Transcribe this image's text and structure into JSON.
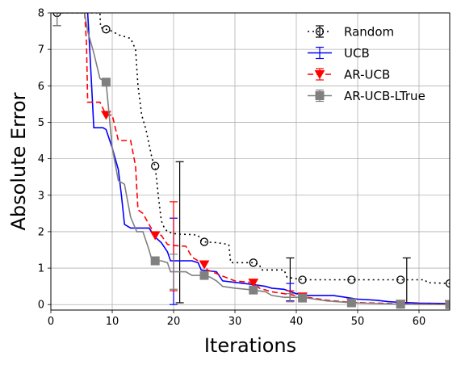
{
  "chart_data": {
    "type": "line",
    "xlabel": "Iterations",
    "ylabel": "Absolute Error",
    "xlim": [
      0,
      65
    ],
    "ylim": [
      -0.15,
      8
    ],
    "x_ticks": [
      0,
      10,
      20,
      30,
      40,
      50,
      60
    ],
    "y_ticks": [
      0,
      1,
      2,
      3,
      4,
      5,
      6,
      7,
      8
    ],
    "grid": true,
    "legend_position": "top-right",
    "series": [
      {
        "name": "Random",
        "color": "#000000",
        "line_style": "dotted",
        "marker": "open-circle",
        "points": [
          [
            1,
            8
          ],
          [
            6,
            8
          ],
          [
            7,
            8
          ],
          [
            8,
            8
          ],
          [
            8.1,
            7.6
          ],
          [
            9,
            7.55
          ],
          [
            10,
            7.5
          ],
          [
            11,
            7.4
          ],
          [
            12,
            7.35
          ],
          [
            13,
            7.3
          ],
          [
            13.8,
            7.0
          ],
          [
            14.2,
            6.0
          ],
          [
            14.8,
            5.2
          ],
          [
            15.5,
            4.8
          ],
          [
            16,
            4.4
          ],
          [
            16.5,
            4.0
          ],
          [
            17,
            3.8
          ],
          [
            17.5,
            3.0
          ],
          [
            18,
            2.3
          ],
          [
            18.5,
            2.1
          ],
          [
            19,
            2.0
          ],
          [
            20,
            1.95
          ],
          [
            21,
            1.93
          ],
          [
            23,
            1.92
          ],
          [
            24,
            1.9
          ],
          [
            24.5,
            1.75
          ],
          [
            25,
            1.72
          ],
          [
            27,
            1.7
          ],
          [
            29,
            1.65
          ],
          [
            29.3,
            1.15
          ],
          [
            33,
            1.15
          ],
          [
            34,
            1.1
          ],
          [
            34.3,
            0.95
          ],
          [
            38,
            0.95
          ],
          [
            38.5,
            0.75
          ],
          [
            41,
            0.68
          ],
          [
            49,
            0.68
          ],
          [
            57,
            0.68
          ],
          [
            61,
            0.68
          ],
          [
            61.3,
            0.6
          ],
          [
            65,
            0.58
          ]
        ],
        "markers": [
          [
            1,
            8
          ],
          [
            9,
            7.55
          ],
          [
            17,
            3.8
          ],
          [
            25,
            1.72
          ],
          [
            33,
            1.15
          ],
          [
            41,
            0.68
          ],
          [
            49,
            0.68
          ],
          [
            57,
            0.68
          ],
          [
            65,
            0.58
          ]
        ],
        "error_bars": [
          {
            "x": 1,
            "low": 7.65,
            "high": 8
          },
          {
            "x": 21,
            "low": 0.05,
            "high": 3.92
          },
          {
            "x": 39,
            "low": 0.1,
            "high": 1.28
          },
          {
            "x": 58,
            "low": 0.05,
            "high": 1.28
          }
        ]
      },
      {
        "name": "UCB",
        "color": "#0000ff",
        "line_style": "solid",
        "marker": "none",
        "points": [
          [
            6,
            8
          ],
          [
            6.3,
            7.1
          ],
          [
            7,
            4.85
          ],
          [
            8.5,
            4.85
          ],
          [
            9,
            4.8
          ],
          [
            10,
            4.3
          ],
          [
            11,
            3.7
          ],
          [
            11.5,
            3.0
          ],
          [
            12,
            2.2
          ],
          [
            13,
            2.1
          ],
          [
            16,
            2.1
          ],
          [
            17,
            1.85
          ],
          [
            18,
            1.7
          ],
          [
            19,
            1.45
          ],
          [
            19.5,
            1.2
          ],
          [
            23,
            1.2
          ],
          [
            24,
            1.15
          ],
          [
            24.5,
            0.95
          ],
          [
            27,
            0.9
          ],
          [
            28,
            0.65
          ],
          [
            33,
            0.55
          ],
          [
            35,
            0.5
          ],
          [
            36,
            0.45
          ],
          [
            38,
            0.42
          ],
          [
            40,
            0.3
          ],
          [
            42,
            0.25
          ],
          [
            46,
            0.25
          ],
          [
            48,
            0.2
          ],
          [
            50,
            0.15
          ],
          [
            53,
            0.12
          ],
          [
            55,
            0.08
          ],
          [
            57,
            0.06
          ],
          [
            60,
            0.04
          ],
          [
            65,
            0.03
          ]
        ],
        "markers": [],
        "error_bars": [
          {
            "x": 20,
            "low": 0.0,
            "high": 2.37
          },
          {
            "x": 39,
            "low": 0.1,
            "high": 0.58
          }
        ]
      },
      {
        "name": "AR-UCB",
        "color": "#ff0000",
        "line_style": "dashed",
        "marker": "filled-triangle-down",
        "points": [
          [
            5.5,
            8
          ],
          [
            5.8,
            7.2
          ],
          [
            6,
            5.55
          ],
          [
            8,
            5.55
          ],
          [
            9,
            5.2
          ],
          [
            10,
            5.2
          ],
          [
            11,
            4.5
          ],
          [
            13,
            4.5
          ],
          [
            13.8,
            3.8
          ],
          [
            14.2,
            2.6
          ],
          [
            15,
            2.5
          ],
          [
            16,
            2.2
          ],
          [
            17,
            1.9
          ],
          [
            18,
            1.9
          ],
          [
            19,
            1.65
          ],
          [
            20,
            1.62
          ],
          [
            22,
            1.6
          ],
          [
            23,
            1.3
          ],
          [
            24,
            1.2
          ],
          [
            25,
            1.1
          ],
          [
            25.5,
            0.95
          ],
          [
            27,
            0.85
          ],
          [
            28,
            0.78
          ],
          [
            30,
            0.65
          ],
          [
            33,
            0.6
          ],
          [
            34,
            0.45
          ],
          [
            36,
            0.35
          ],
          [
            38,
            0.3
          ],
          [
            41,
            0.22
          ],
          [
            45,
            0.12
          ],
          [
            49,
            0.06
          ],
          [
            57,
            0.02
          ],
          [
            65,
            0.01
          ]
        ],
        "markers": [
          [
            9,
            5.2
          ],
          [
            17,
            1.9
          ],
          [
            25,
            1.1
          ],
          [
            33,
            0.6
          ],
          [
            41,
            0.22
          ],
          [
            49,
            0.06
          ],
          [
            57,
            0.02
          ],
          [
            65,
            0.01
          ]
        ],
        "error_bars": [
          {
            "x": 20,
            "low": 0.38,
            "high": 2.82
          },
          {
            "x": 39,
            "low": 0.08,
            "high": 0.38
          }
        ]
      },
      {
        "name": "AR-UCB-LTrue",
        "color": "#808080",
        "line_style": "solid",
        "marker": "filled-square",
        "points": [
          [
            1,
            8
          ],
          [
            5.5,
            8
          ],
          [
            6,
            7.5
          ],
          [
            7,
            6.9
          ],
          [
            8,
            6.2
          ],
          [
            9,
            6.1
          ],
          [
            10,
            4.3
          ],
          [
            11,
            3.4
          ],
          [
            12,
            3.3
          ],
          [
            13,
            2.4
          ],
          [
            14,
            2.0
          ],
          [
            15,
            2.0
          ],
          [
            16,
            1.5
          ],
          [
            16.5,
            1.2
          ],
          [
            18,
            1.2
          ],
          [
            19,
            1.15
          ],
          [
            19.5,
            0.9
          ],
          [
            22,
            0.9
          ],
          [
            23,
            0.8
          ],
          [
            25,
            0.8
          ],
          [
            26,
            0.75
          ],
          [
            27,
            0.65
          ],
          [
            28,
            0.5
          ],
          [
            30,
            0.45
          ],
          [
            33,
            0.4
          ],
          [
            35,
            0.35
          ],
          [
            36,
            0.25
          ],
          [
            38,
            0.2
          ],
          [
            41,
            0.2
          ],
          [
            45,
            0.1
          ],
          [
            49,
            0.05
          ],
          [
            57,
            0.01
          ],
          [
            65,
            0.0
          ]
        ],
        "markers": [
          [
            9,
            6.1
          ],
          [
            17,
            1.2
          ],
          [
            25,
            0.8
          ],
          [
            33,
            0.4
          ],
          [
            41,
            0.18
          ],
          [
            49,
            0.05
          ],
          [
            57,
            0.01
          ],
          [
            65,
            0.0
          ]
        ],
        "error_bars": [
          {
            "x": 1,
            "low": 7.65,
            "high": 8
          },
          {
            "x": 20,
            "low": 0.42,
            "high": 1.38
          },
          {
            "x": 39,
            "low": 0.08,
            "high": 0.3
          }
        ]
      }
    ]
  }
}
